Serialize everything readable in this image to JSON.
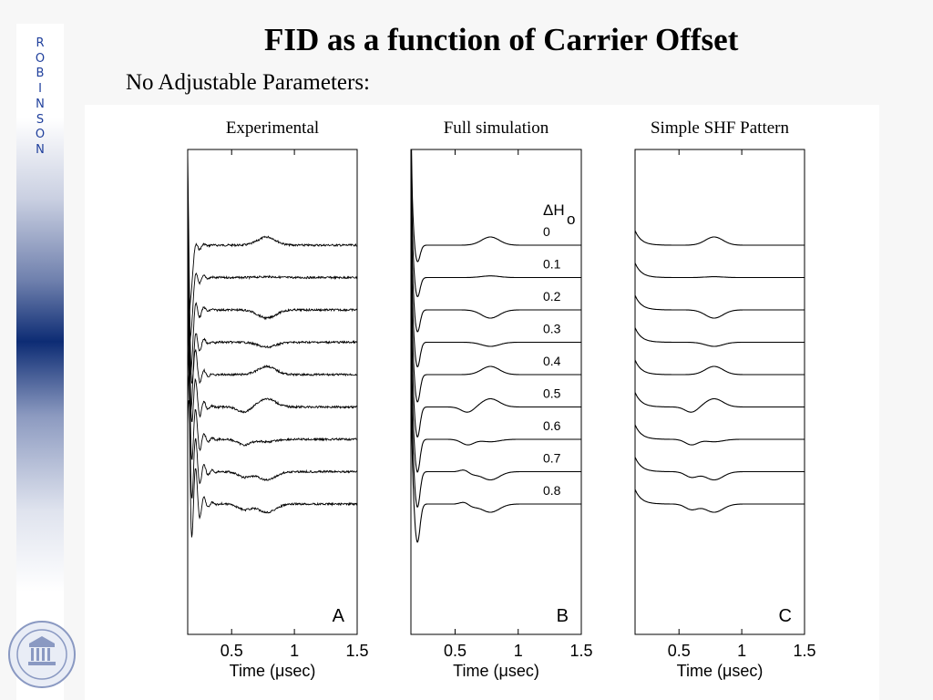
{
  "slide": {
    "title": "FID as a function of Carrier Offset",
    "subtitle": "No Adjustable Parameters:",
    "side_text": [
      "R",
      "O",
      "B",
      "I",
      "N",
      "S",
      "O",
      "N"
    ],
    "seal_icon": "university-seal-icon",
    "colors": {
      "accent": "#0d2c74",
      "side_text": "#1f3f9c",
      "background": "#f7f7f7"
    }
  },
  "chart_data": [
    {
      "type": "line",
      "title": "Experimental",
      "panel_label": "A",
      "xlabel": "Time (μsec)",
      "xticks": [
        0.5,
        1,
        1.5
      ],
      "xlim": [
        0.15,
        1.5
      ],
      "offsets_dH": [
        0,
        0.1,
        0.2,
        0.3,
        0.4,
        0.5,
        0.6,
        0.7,
        0.8
      ],
      "series": [
        {
          "baseline": 0,
          "echo_polarity": 1
        },
        {
          "baseline": -1,
          "echo_polarity": 0.1
        },
        {
          "baseline": -2,
          "echo_polarity": -1
        },
        {
          "baseline": -3,
          "echo_polarity": -0.6
        },
        {
          "baseline": -4,
          "echo_polarity": 1
        },
        {
          "baseline": -5,
          "echo_polarity": 1
        },
        {
          "baseline": -6,
          "echo_polarity": -0.3
        },
        {
          "baseline": -7,
          "echo_polarity": -1
        },
        {
          "baseline": -8,
          "echo_polarity": -1
        }
      ],
      "noise": true
    },
    {
      "type": "line",
      "title": "Full simulation",
      "panel_label": "B",
      "xlabel": "Time (μsec)",
      "xticks": [
        0.5,
        1,
        1.5
      ],
      "xlim": [
        0.15,
        1.5
      ],
      "legend_title": "ΔH",
      "legend_subscript": "o",
      "series_labels": [
        "0",
        "0.1",
        "0.2",
        "0.3",
        "0.4",
        "0.5",
        "0.6",
        "0.7",
        "0.8"
      ],
      "offsets_dH": [
        0,
        0.1,
        0.2,
        0.3,
        0.4,
        0.5,
        0.6,
        0.7,
        0.8
      ],
      "series": [
        {
          "baseline": 0,
          "echo_polarity": 1
        },
        {
          "baseline": -1,
          "echo_polarity": 0.2
        },
        {
          "baseline": -2,
          "echo_polarity": -1
        },
        {
          "baseline": -3,
          "echo_polarity": -0.5
        },
        {
          "baseline": -4,
          "echo_polarity": 1
        },
        {
          "baseline": -5,
          "echo_polarity": 1
        },
        {
          "baseline": -6,
          "echo_polarity": -0.3
        },
        {
          "baseline": -7,
          "echo_polarity": -1
        },
        {
          "baseline": -8,
          "echo_polarity": -1
        }
      ],
      "noise": false
    },
    {
      "type": "line",
      "title": "Simple SHF Pattern",
      "panel_label": "C",
      "xlabel": "Time (μsec)",
      "xticks": [
        0.5,
        1,
        1.5
      ],
      "xlim": [
        0.15,
        1.5
      ],
      "offsets_dH": [
        0,
        0.1,
        0.2,
        0.3,
        0.4,
        0.5,
        0.6,
        0.7,
        0.8
      ],
      "series": [
        {
          "baseline": 0,
          "echo_polarity": 1
        },
        {
          "baseline": -1,
          "echo_polarity": 0.1
        },
        {
          "baseline": -2,
          "echo_polarity": -1
        },
        {
          "baseline": -3,
          "echo_polarity": -0.5
        },
        {
          "baseline": -4,
          "echo_polarity": 1
        },
        {
          "baseline": -5,
          "echo_polarity": 1
        },
        {
          "baseline": -6,
          "echo_polarity": -0.3
        },
        {
          "baseline": -7,
          "echo_polarity": -1
        },
        {
          "baseline": -8,
          "echo_polarity": -1
        }
      ],
      "noise": false
    }
  ]
}
